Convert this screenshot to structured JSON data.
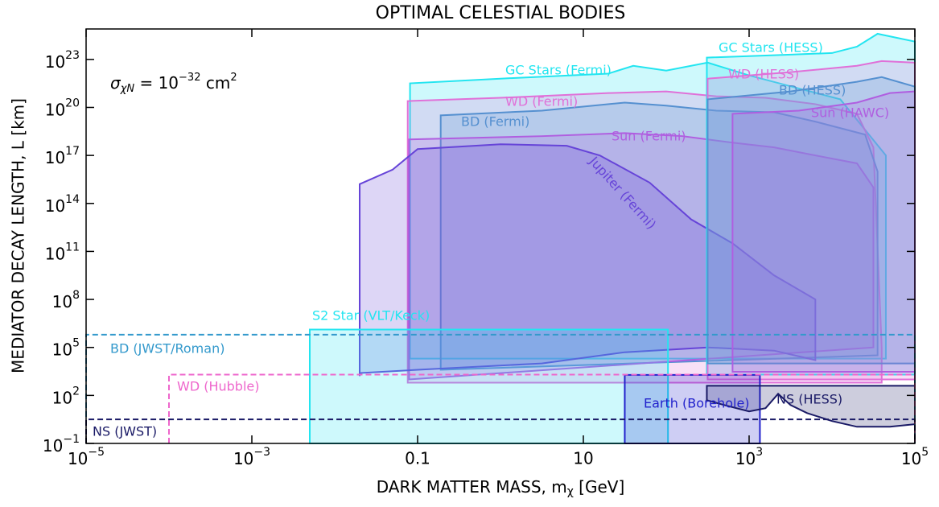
{
  "chart_data": {
    "type": "region",
    "title": "OPTIMAL CELESTIAL BODIES",
    "x_label": {
      "text": "DARK MATTER MASS, m",
      "subscript": "χ",
      "suffix": " [GeV]"
    },
    "y_label": "MEDIATOR DECAY LENGTH, L [km]",
    "annotation": {
      "symbol": "σ",
      "subscript": "χN",
      "text": " = 10",
      "exponent": "−32",
      "unit": " cm",
      "unit_exponent": "2"
    },
    "xscale": "log",
    "yscale": "log",
    "xlim": [
      1e-05,
      100000.0
    ],
    "ylim": [
      0.1,
      8e+24
    ],
    "xticks": [
      {
        "value": 1e-05,
        "label": "10",
        "exponent": "−5"
      },
      {
        "value": 0.001,
        "label": "10",
        "exponent": "−3"
      },
      0.1,
      10,
      {
        "value": 1000,
        "label": "10",
        "exponent": "3"
      },
      {
        "value": 100000,
        "label": "10",
        "exponent": "5"
      }
    ],
    "yticks": [
      {
        "value": 0.1,
        "label": "10",
        "exponent": "−1"
      },
      {
        "value": 100,
        "label": "10",
        "exponent": "2"
      },
      {
        "value": 100000.0,
        "label": "10",
        "exponent": "5"
      },
      {
        "value": 100000000.0,
        "label": "10",
        "exponent": "8"
      },
      {
        "value": 100000000000.0,
        "label": "10",
        "exponent": "11"
      },
      {
        "value": 100000000000000.0,
        "label": "10",
        "exponent": "14"
      },
      {
        "value": 1e+17,
        "label": "10",
        "exponent": "17"
      },
      {
        "value": 1e+20,
        "label": "10",
        "exponent": "20"
      },
      {
        "value": 1e+23,
        "label": "10",
        "exponent": "23"
      }
    ],
    "regions": [
      {
        "name": "GC Stars (Fermi)",
        "color": "#22e5f0",
        "x": [
          0.081,
          0.081,
          1,
          20,
          40,
          100,
          316,
          1000,
          12600,
          44700,
          44700
        ],
        "y": [
          20000.0,
          3.2e+21,
          6.3e+21,
          1.3e+22,
          4e+22,
          2e+22,
          6.3e+22,
          1e+22,
          3.2e+20,
          1e+17,
          20000.0
        ]
      },
      {
        "name": "WD (Fermi)",
        "color": "#e070d8",
        "x": [
          0.076,
          0.076,
          1,
          20,
          100,
          400,
          1580,
          6300,
          20000,
          31600,
          39800,
          39800
        ],
        "y": [
          630,
          2.5e+20,
          4e+20,
          7.9e+20,
          1e+21,
          5e+20,
          4e+20,
          1.6e+20,
          4e+19,
          3.2e+17,
          100000.0,
          630
        ]
      },
      {
        "name": "BD (Fermi)",
        "color": "#5590d0",
        "x": [
          0.19,
          0.19,
          3.16,
          31.6,
          100,
          400,
          2000,
          6300,
          25100,
          35500,
          35500
        ],
        "y": [
          4000.0,
          3.2e+19,
          6.3e+19,
          2e+20,
          1.3e+20,
          6.3e+19,
          5e+19,
          1.3e+19,
          2e+18,
          1e+16,
          32000.0
        ]
      },
      {
        "name": "Sun (Fermi)",
        "color": "#b05ee0",
        "x": [
          0.079,
          0.079,
          3.16,
          31.6,
          158,
          631,
          2000,
          6300,
          20000,
          31600,
          31600
        ],
        "y": [
          1000.0,
          1e+18,
          1.6e+18,
          2.5e+18,
          1.6e+18,
          6.3e+17,
          3.2e+17,
          1e+17,
          3.2e+16,
          1000000000000000.0,
          100000.0
        ]
      },
      {
        "name": "Jupiter (Fermi)",
        "color": "#6644d8",
        "x": [
          0.02,
          0.02,
          0.05,
          0.1,
          1,
          6.3,
          15.8,
          63,
          200,
          631,
          2000,
          6300,
          6300,
          2000,
          316,
          31.6,
          3.16,
          0.1,
          0.02
        ],
        "y": [
          1600.0,
          1600000000000000.0,
          1.3e+16,
          2.5e+17,
          5e+17,
          4e+17,
          1e+17,
          2000000000000000.0,
          10000000000000.0,
          320000000000.0,
          3200000000.0,
          100000000.0,
          16000.0,
          63000.0,
          100000.0,
          50000.0,
          10000.0,
          4000.0,
          2500.0
        ]
      },
      {
        "name": "S2 Star (VLT/Keck)",
        "color": "#22e5f0",
        "x": [
          0.005,
          0.005,
          105,
          105
        ],
        "y": [
          0.1,
          1300000.0,
          1300000.0,
          0.1
        ]
      },
      {
        "name": "GC Stars (HESS)",
        "color": "#22e5f0",
        "x": [
          309,
          309,
          3160,
          10000,
          20000,
          35500,
          100000,
          100000
        ],
        "y": [
          2000.0,
          1.3e+23,
          2e+23,
          2.5e+23,
          6.3e+23,
          4e+24,
          1.3e+24,
          2000.0
        ]
      },
      {
        "name": "WD (HESS)",
        "color": "#e070d8",
        "x": [
          316,
          3160,
          20000,
          39800,
          100000,
          100000,
          316
        ],
        "y": [
          6.3e+21,
          1.6e+22,
          4e+22,
          7.9e+22,
          6.3e+22,
          1000.0,
          1000.0
        ]
      },
      {
        "name": "BD (HESS)",
        "color": "#5590d0",
        "x": [
          316,
          3160,
          20000,
          39800,
          100000,
          100000,
          316
        ],
        "y": [
          3.2e+20,
          1e+21,
          4e+21,
          7.9e+21,
          2e+21,
          10000.0,
          10000.0
        ]
      },
      {
        "name": "Sun (HAWC)",
        "color": "#b05ee0",
        "x": [
          631,
          631,
          3980,
          20000,
          50100,
          100000,
          100000
        ],
        "y": [
          3000.0,
          4e+19,
          6.3e+19,
          2e+20,
          7.9e+20,
          1e+21,
          3000.0
        ]
      },
      {
        "name": "Earth (Borehole)",
        "color": "#2222cc",
        "x": [
          31.6,
          31.6,
          1350,
          1350
        ],
        "y": [
          0.1,
          1900.0,
          1900.0,
          0.1
        ]
      },
      {
        "name": "NS (HESS)",
        "color": "#1a1a66",
        "x": [
          309,
          100000,
          100000,
          50100,
          20000,
          10000,
          5010,
          3160,
          2240,
          1580,
          1000,
          501,
          309
        ],
        "y": [
          400,
          400,
          1.6,
          1.1,
          1.1,
          2.5,
          7.9,
          25,
          126,
          16,
          10,
          25,
          50
        ]
      }
    ],
    "limits": [
      {
        "name": "BD (JWST/Roman)",
        "color": "#3399cc",
        "x": [
          1e-05,
          100000.0
        ],
        "y": 630000.0
      },
      {
        "name": "WD (Hubble)",
        "color": "#ee66cc",
        "x": [
          0.0001,
          100000.0
        ],
        "y": 2000.0
      },
      {
        "name": "NS (JWST)",
        "color": "#1a1a66",
        "x": [
          1e-05,
          100000.0
        ],
        "y": 3.2
      }
    ]
  }
}
